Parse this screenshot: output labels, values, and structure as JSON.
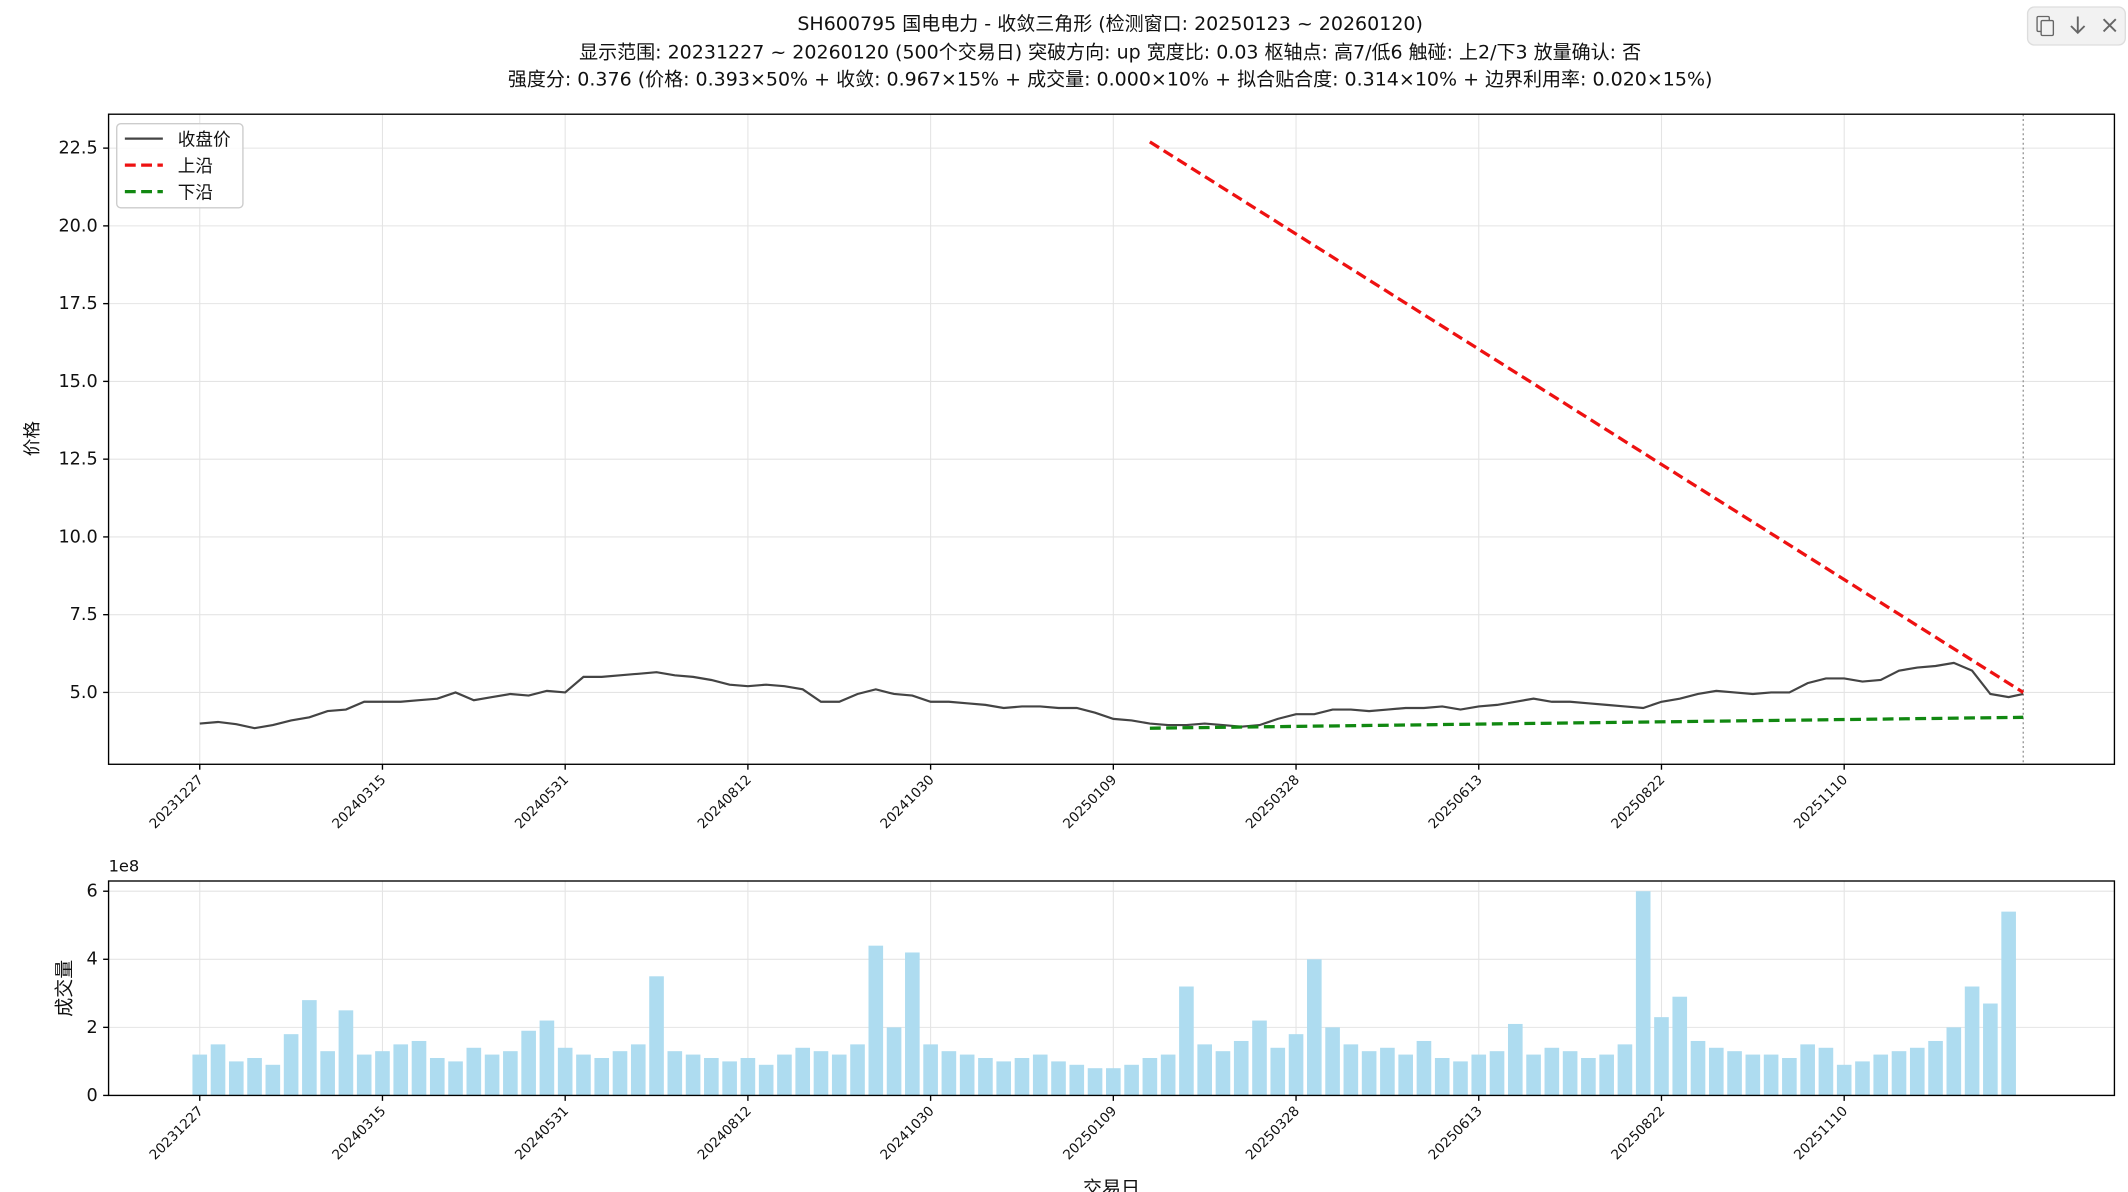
{
  "chart_data": [
    {
      "type": "line",
      "title": "SH600795 国电电力 - 收敛三角形 (检测窗口: 20250123 ~ 20260120)",
      "subtitle": "显示范围: 20231227 ~ 20260120 (500个交易日)  突破方向: up  宽度比: 0.03  枢轴点: 高7/低6  触碰: 上2/下3  放量确认: 否",
      "caption": "强度分: 0.376 (价格: 0.393×50% + 收敛: 0.967×15% + 成交量: 0.000×10% + 拟合贴合度: 0.314×10% + 边界利用率: 0.020×15%)",
      "ylabel": "价格",
      "xlim": [
        -24.95,
        523.95
      ],
      "ylim": [
        2.69,
        23.59
      ],
      "yticks": [
        {
          "value": 5,
          "label": "5.0"
        },
        7.5,
        {
          "value": 10,
          "label": "10.0"
        },
        12.5,
        {
          "value": 15,
          "label": "15.0"
        },
        17.5,
        {
          "value": 20,
          "label": "20.0"
        },
        22.5
      ],
      "xticks": [
        {
          "value": 0,
          "label": "20231227"
        },
        {
          "value": 50,
          "label": "20240315"
        },
        {
          "value": 100,
          "label": "20240531"
        },
        {
          "value": 150,
          "label": "20240812"
        },
        {
          "value": 200,
          "label": "20241030"
        },
        {
          "value": 250,
          "label": "20250109"
        },
        {
          "value": 300,
          "label": "20250328"
        },
        {
          "value": 350,
          "label": "20250613"
        },
        {
          "value": 400,
          "label": "20250822"
        },
        {
          "value": 450,
          "label": "20251110"
        }
      ],
      "grid": true,
      "legend": "upper-left",
      "vline": 499,
      "series": [
        {
          "name": "收盘价",
          "color": "#444444",
          "dash": false,
          "x": [
            0,
            5,
            10,
            15,
            20,
            25,
            30,
            35,
            40,
            45,
            50,
            55,
            60,
            65,
            70,
            75,
            80,
            85,
            90,
            95,
            100,
            105,
            110,
            115,
            120,
            125,
            130,
            135,
            140,
            145,
            150,
            155,
            160,
            165,
            170,
            175,
            180,
            185,
            190,
            195,
            200,
            205,
            210,
            215,
            220,
            225,
            230,
            235,
            240,
            245,
            250,
            255,
            260,
            265,
            270,
            275,
            280,
            285,
            290,
            295,
            300,
            305,
            310,
            315,
            320,
            325,
            330,
            335,
            340,
            345,
            350,
            355,
            360,
            365,
            370,
            375,
            380,
            385,
            390,
            395,
            400,
            405,
            410,
            415,
            420,
            425,
            430,
            435,
            440,
            445,
            450,
            455,
            460,
            465,
            470,
            475,
            480,
            485,
            490,
            495,
            499
          ],
          "values": [
            4.0,
            4.05,
            3.98,
            3.85,
            3.95,
            4.1,
            4.2,
            4.4,
            4.45,
            4.7,
            4.7,
            4.7,
            4.75,
            4.8,
            5.0,
            4.75,
            4.85,
            4.95,
            4.9,
            5.05,
            5.0,
            5.5,
            5.5,
            5.55,
            5.6,
            5.65,
            5.55,
            5.5,
            5.4,
            5.25,
            5.2,
            5.25,
            5.2,
            5.1,
            4.7,
            4.7,
            4.95,
            5.1,
            4.95,
            4.9,
            4.7,
            4.7,
            4.65,
            4.6,
            4.5,
            4.55,
            4.55,
            4.5,
            4.5,
            4.35,
            4.15,
            4.1,
            4.0,
            3.95,
            3.95,
            4.0,
            3.95,
            3.9,
            3.95,
            4.15,
            4.3,
            4.3,
            4.45,
            4.45,
            4.4,
            4.45,
            4.5,
            4.5,
            4.55,
            4.45,
            4.55,
            4.6,
            4.7,
            4.8,
            4.7,
            4.7,
            4.65,
            4.6,
            4.55,
            4.5,
            4.7,
            4.8,
            4.95,
            5.05,
            5.0,
            4.95,
            5.0,
            5.0,
            5.3,
            5.45,
            5.45,
            5.35,
            5.4,
            5.7,
            5.8,
            5.85,
            5.95,
            5.7,
            4.95,
            4.85,
            4.95
          ]
        },
        {
          "name": "上沿",
          "color": "#ee1111",
          "dash": true,
          "x": [
            260,
            499
          ],
          "values": [
            22.7,
            5.0
          ]
        },
        {
          "name": "下沿",
          "color": "#118811",
          "dash": true,
          "x": [
            260,
            499
          ],
          "values": [
            3.85,
            4.2
          ]
        }
      ]
    },
    {
      "type": "bar",
      "ylabel": "成交量",
      "xlabel": "交易日",
      "offset_label": "1e8",
      "color": "#aedcf0",
      "xlim": [
        -24.95,
        523.95
      ],
      "ylim": [
        0,
        6.3
      ],
      "yticks": [
        0,
        2,
        4,
        6
      ],
      "xticks": [
        {
          "value": 0,
          "label": "20231227"
        },
        {
          "value": 50,
          "label": "20240315"
        },
        {
          "value": 100,
          "label": "20240531"
        },
        {
          "value": 150,
          "label": "20240812"
        },
        {
          "value": 200,
          "label": "20241030"
        },
        {
          "value": 250,
          "label": "20250109"
        },
        {
          "value": 300,
          "label": "20250328"
        },
        {
          "value": 350,
          "label": "20250613"
        },
        {
          "value": 400,
          "label": "20250822"
        },
        {
          "value": 450,
          "label": "20251110"
        }
      ],
      "grid": true,
      "x": [
        0,
        5,
        10,
        15,
        20,
        25,
        30,
        35,
        40,
        45,
        50,
        55,
        60,
        65,
        70,
        75,
        80,
        85,
        90,
        95,
        100,
        105,
        110,
        115,
        120,
        125,
        130,
        135,
        140,
        145,
        150,
        155,
        160,
        165,
        170,
        175,
        180,
        185,
        190,
        195,
        200,
        205,
        210,
        215,
        220,
        225,
        230,
        235,
        240,
        245,
        250,
        255,
        260,
        265,
        270,
        275,
        280,
        285,
        290,
        295,
        300,
        305,
        310,
        315,
        320,
        325,
        330,
        335,
        340,
        345,
        350,
        355,
        360,
        365,
        370,
        375,
        380,
        385,
        390,
        395,
        400,
        405,
        410,
        415,
        420,
        425,
        430,
        435,
        440,
        445,
        450,
        455,
        460,
        465,
        470,
        475,
        480,
        485,
        490,
        495
      ],
      "values": [
        1.2,
        1.5,
        1.0,
        1.1,
        0.9,
        1.8,
        2.8,
        1.3,
        2.5,
        1.2,
        1.3,
        1.5,
        1.6,
        1.1,
        1.0,
        1.4,
        1.2,
        1.3,
        1.9,
        2.2,
        1.4,
        1.2,
        1.1,
        1.3,
        1.5,
        3.5,
        1.3,
        1.2,
        1.1,
        1.0,
        1.1,
        0.9,
        1.2,
        1.4,
        1.3,
        1.2,
        1.5,
        4.4,
        2.0,
        4.2,
        1.5,
        1.3,
        1.2,
        1.1,
        1.0,
        1.1,
        1.2,
        1.0,
        0.9,
        0.8,
        0.8,
        0.9,
        1.1,
        1.2,
        3.2,
        1.5,
        1.3,
        1.6,
        2.2,
        1.4,
        1.8,
        4.0,
        2.0,
        1.5,
        1.3,
        1.4,
        1.2,
        1.6,
        1.1,
        1.0,
        1.2,
        1.3,
        2.1,
        1.2,
        1.4,
        1.3,
        1.1,
        1.2,
        1.5,
        6.0,
        2.3,
        2.9,
        1.6,
        1.4,
        1.3,
        1.2,
        1.2,
        1.1,
        1.5,
        1.4,
        0.9,
        1.0,
        1.2,
        1.3,
        1.4,
        1.6,
        2.0,
        3.2,
        2.7,
        5.4
      ]
    }
  ]
}
